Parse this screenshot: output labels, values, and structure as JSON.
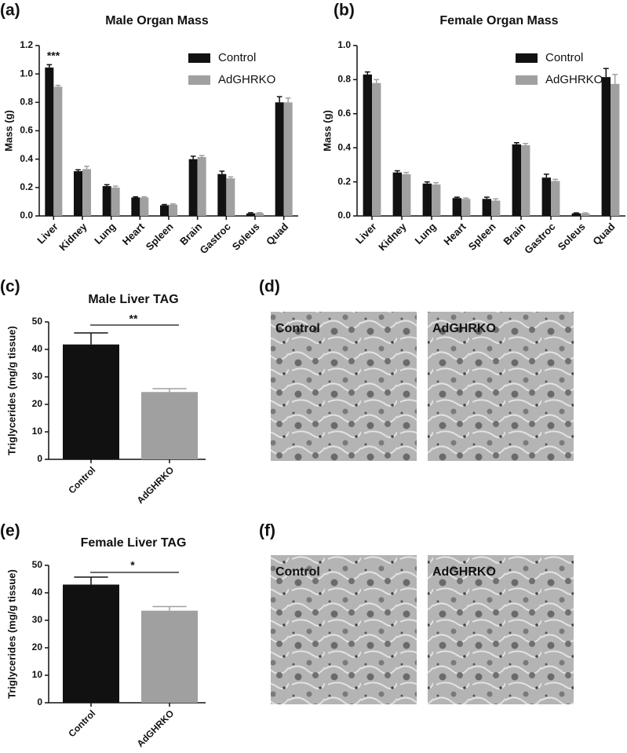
{
  "chart_data": [
    {
      "type": "bar",
      "panel": "(a)",
      "title": "Male Organ Mass",
      "ylabel": "Mass (g)",
      "categories": [
        "Liver",
        "Kidney",
        "Lung",
        "Heart",
        "Spleen",
        "Brain",
        "Gastroc",
        "Soleus",
        "Quad"
      ],
      "series": [
        {
          "name": "Control",
          "color": "#111111",
          "values": [
            1.045,
            0.315,
            0.21,
            0.13,
            0.075,
            0.4,
            0.295,
            0.018,
            0.8
          ],
          "errors": [
            0.02,
            0.01,
            0.01,
            0.005,
            0.005,
            0.02,
            0.02,
            0.005,
            0.04
          ]
        },
        {
          "name": "AdGHRKO",
          "color": "#a0a0a0",
          "values": [
            0.91,
            0.33,
            0.2,
            0.13,
            0.08,
            0.415,
            0.265,
            0.02,
            0.8
          ],
          "errors": [
            0.01,
            0.02,
            0.01,
            0.005,
            0.005,
            0.01,
            0.01,
            0.003,
            0.03
          ]
        }
      ],
      "ylim": [
        0,
        1.2
      ],
      "yticks": [
        {
          "value": 0,
          "label": "0.0"
        },
        0.2,
        0.4,
        0.6,
        0.8,
        {
          "value": 1,
          "label": "1.0"
        },
        1.2
      ],
      "legend": "upper right",
      "annotations": [
        "***"
      ]
    },
    {
      "type": "bar",
      "panel": "(b)",
      "title": "Female Organ Mass",
      "ylabel": "Mass (g)",
      "categories": [
        "Liver",
        "Kidney",
        "Lung",
        "Heart",
        "Spleen",
        "Brain",
        "Gastroc",
        "Soleus",
        "Quad"
      ],
      "series": [
        {
          "name": "Control",
          "color": "#111111",
          "values": [
            0.83,
            0.255,
            0.19,
            0.105,
            0.1,
            0.42,
            0.225,
            0.015,
            0.815
          ],
          "errors": [
            0.015,
            0.01,
            0.01,
            0.005,
            0.01,
            0.01,
            0.02,
            0.003,
            0.05
          ]
        },
        {
          "name": "AdGHRKO",
          "color": "#a0a0a0",
          "values": [
            0.78,
            0.245,
            0.185,
            0.1,
            0.09,
            0.415,
            0.205,
            0.015,
            0.775
          ],
          "errors": [
            0.02,
            0.01,
            0.01,
            0.005,
            0.01,
            0.01,
            0.01,
            0.003,
            0.055
          ]
        }
      ],
      "ylim": [
        0,
        1
      ],
      "yticks": [
        {
          "value": 0,
          "label": "0.0"
        },
        0.2,
        0.4,
        0.6,
        0.8,
        {
          "value": 1,
          "label": "1.0"
        }
      ],
      "legend": "upper right"
    },
    {
      "type": "bar",
      "panel": "(c)",
      "title": "Male Liver TAG",
      "ylabel": "Triglycerides (mg/g tissue)",
      "categories": [
        "Control",
        "AdGHRKO"
      ],
      "values": [
        41.8,
        24.5
      ],
      "errors": [
        4.2,
        1.2
      ],
      "colors": [
        "#111111",
        "#a0a0a0"
      ],
      "ylim": [
        0,
        50
      ],
      "yticks": [
        0,
        10,
        20,
        30,
        40,
        50
      ],
      "annotations": [
        "**"
      ]
    },
    {
      "type": "bar",
      "panel": "(e)",
      "title": "Female Liver TAG",
      "ylabel": "Triglycerides (mg/g tissue)",
      "categories": [
        "Control",
        "AdGHRKO"
      ],
      "values": [
        43,
        33.5
      ],
      "errors": [
        2.7,
        1.5
      ],
      "colors": [
        "#111111",
        "#a0a0a0"
      ],
      "ylim": [
        0,
        50
      ],
      "yticks": [
        0,
        10,
        20,
        30,
        40,
        50
      ],
      "annotations": [
        "*"
      ]
    }
  ],
  "images": [
    {
      "panel": "(d)",
      "labels": [
        "Control",
        "AdGHRKO"
      ]
    },
    {
      "panel": "(f)",
      "labels": [
        "Control",
        "AdGHRKO"
      ]
    }
  ]
}
